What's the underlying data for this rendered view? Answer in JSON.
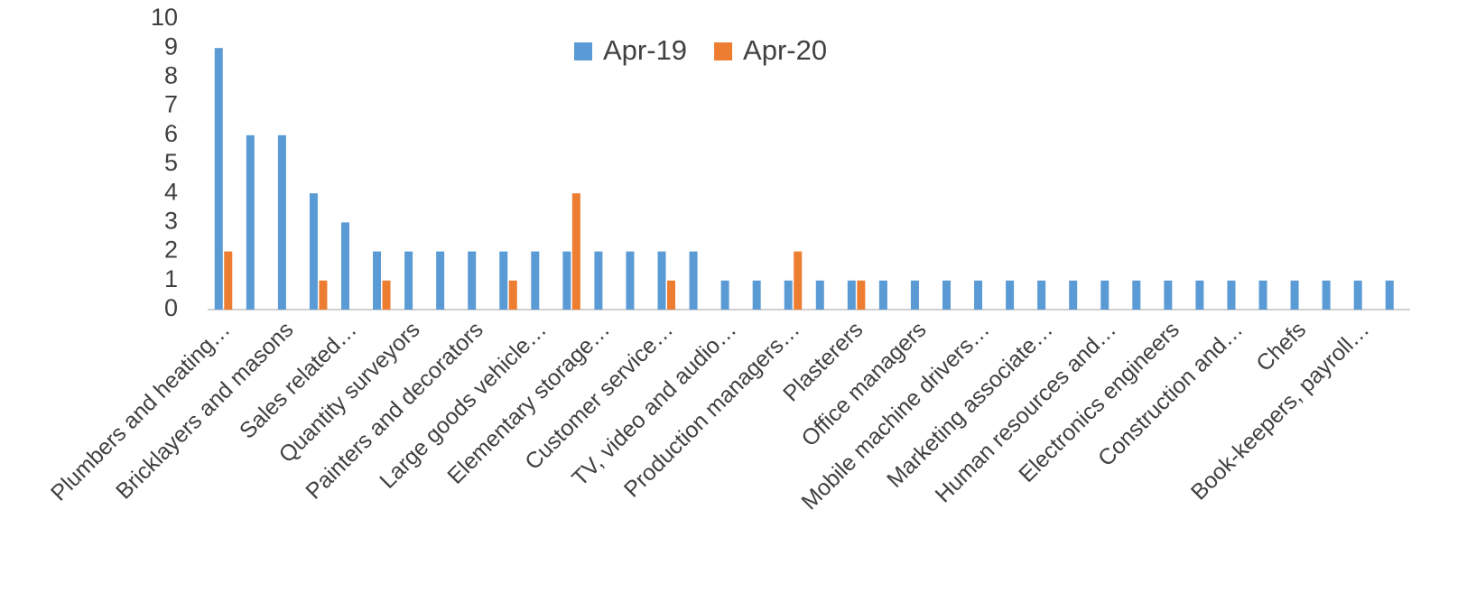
{
  "chart_data": {
    "type": "bar",
    "categories": [
      "Plumbers and heating…",
      null,
      "Bricklayers and masons",
      null,
      "Sales related…",
      null,
      "Quantity surveyors",
      null,
      "Painters and decorators",
      null,
      "Large goods vehicle…",
      null,
      "Elementary storage…",
      null,
      "Customer service…",
      null,
      "TV, video and audio…",
      null,
      "Production managers…",
      null,
      "Plasterers",
      null,
      "Office managers",
      null,
      "Mobile machine drivers…",
      null,
      "Marketing associate…",
      null,
      "Human resources and…",
      null,
      "Electronics engineers",
      null,
      "Construction and…",
      null,
      "Chefs",
      null,
      "Book-keepers, payroll…",
      null
    ],
    "series": [
      {
        "name": "Apr-19",
        "color": "#5b9bd5",
        "values": [
          9,
          6,
          6,
          4,
          3,
          2,
          2,
          2,
          2,
          2,
          2,
          2,
          2,
          2,
          2,
          2,
          1,
          1,
          1,
          1,
          1,
          1,
          1,
          1,
          1,
          1,
          1,
          1,
          1,
          1,
          1,
          1,
          1,
          1,
          1,
          1,
          1,
          1
        ]
      },
      {
        "name": "Apr-20",
        "color": "#ed7d31",
        "values": [
          2,
          0,
          0,
          1,
          0,
          1,
          0,
          0,
          0,
          1,
          0,
          4,
          0,
          0,
          1,
          0,
          0,
          0,
          2,
          0,
          1,
          0,
          0,
          0,
          0,
          0,
          0,
          0,
          0,
          0,
          0,
          0,
          0,
          0,
          0,
          0,
          0,
          0
        ]
      }
    ],
    "ylim": [
      0,
      10
    ],
    "yticks": [
      0,
      1,
      2,
      3,
      4,
      5,
      6,
      7,
      8,
      9,
      10
    ],
    "grid": false,
    "legend": "top"
  }
}
